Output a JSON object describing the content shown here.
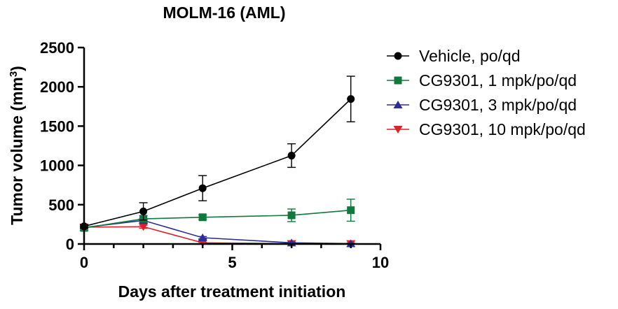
{
  "chart_data": {
    "type": "line",
    "title": "MOLM-16 (AML)",
    "xlabel": "Days after treatment initiation",
    "ylabel_main": "Tumor volume (mm",
    "ylabel_sup": "3",
    "ylabel_end": ")",
    "xlim": [
      0,
      10
    ],
    "ylim": [
      0,
      2500
    ],
    "x_ticks": [
      0,
      5,
      10
    ],
    "x_tick_labels": [
      "0",
      "5",
      "10"
    ],
    "y_ticks": [
      0,
      500,
      1000,
      1500,
      2000,
      2500
    ],
    "y_tick_labels": [
      "0",
      "500",
      "1000",
      "1500",
      "2000",
      "2500"
    ],
    "x_minor_step": 1,
    "legend_position": "right",
    "series": [
      {
        "name": "Vehicle, po/qd",
        "color": "#000000",
        "marker": "circle",
        "x": [
          0,
          2,
          4,
          7,
          9
        ],
        "values": [
          225,
          415,
          710,
          1125,
          1845
        ],
        "error": [
          20,
          110,
          160,
          150,
          290
        ]
      },
      {
        "name": "CG9301, 1 mpk/po/qd",
        "color": "#0f7a3c",
        "marker": "square",
        "x": [
          0,
          2,
          4,
          7,
          9
        ],
        "values": [
          205,
          320,
          340,
          365,
          430
        ],
        "error": [
          15,
          40,
          30,
          80,
          140
        ]
      },
      {
        "name": "CG9301, 3 mpk/po/qd",
        "color": "#2b2f8f",
        "marker": "triangle-up",
        "x": [
          0,
          2,
          4,
          7,
          9
        ],
        "values": [
          210,
          300,
          80,
          15,
          5
        ],
        "error": [
          15,
          25,
          15,
          8,
          5
        ]
      },
      {
        "name": "CG9301, 10 mpk/po/qd",
        "color": "#e0202a",
        "marker": "triangle-down",
        "x": [
          0,
          2,
          4,
          7,
          9
        ],
        "values": [
          215,
          220,
          15,
          5,
          3
        ],
        "error": [
          15,
          20,
          8,
          5,
          3
        ]
      }
    ]
  }
}
